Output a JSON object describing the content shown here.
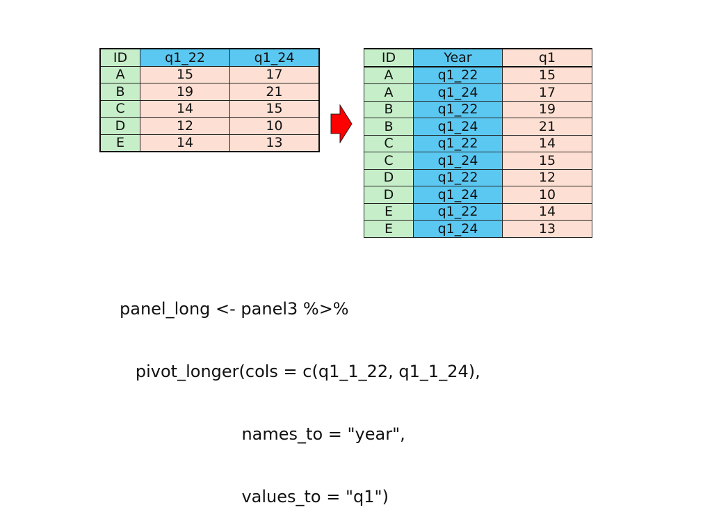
{
  "colors": {
    "id_col": "#c6eec9",
    "header": "#5bc8f2",
    "value": "#fde0d3",
    "arrow": "#ff0000"
  },
  "wide_table": {
    "headers": [
      "ID",
      "q1_22",
      "q1_24"
    ],
    "rows": [
      [
        "A",
        "15",
        "17"
      ],
      [
        "B",
        "19",
        "21"
      ],
      [
        "C",
        "14",
        "15"
      ],
      [
        "D",
        "12",
        "10"
      ],
      [
        "E",
        "14",
        "13"
      ]
    ]
  },
  "arrow_icon": "right-arrow",
  "long_table": {
    "headers": [
      "ID",
      "Year",
      "q1"
    ],
    "rows": [
      [
        "A",
        "q1_22",
        "15"
      ],
      [
        "A",
        "q1_24",
        "17"
      ],
      [
        "B",
        "q1_22",
        "19"
      ],
      [
        "B",
        "q1_24",
        "21"
      ],
      [
        "C",
        "q1_22",
        "14"
      ],
      [
        "C",
        "q1_24",
        "15"
      ],
      [
        "D",
        "q1_22",
        "12"
      ],
      [
        "D",
        "q1_24",
        "10"
      ],
      [
        "E",
        "q1_22",
        "14"
      ],
      [
        "E",
        "q1_24",
        "13"
      ]
    ]
  },
  "code": {
    "lines": [
      "panel_long <- panel3 %>%",
      "   pivot_longer(cols = c(q1_1_22, q1_1_24),",
      "                       names_to = \"year\",",
      "                       values_to = \"q1\")"
    ]
  }
}
